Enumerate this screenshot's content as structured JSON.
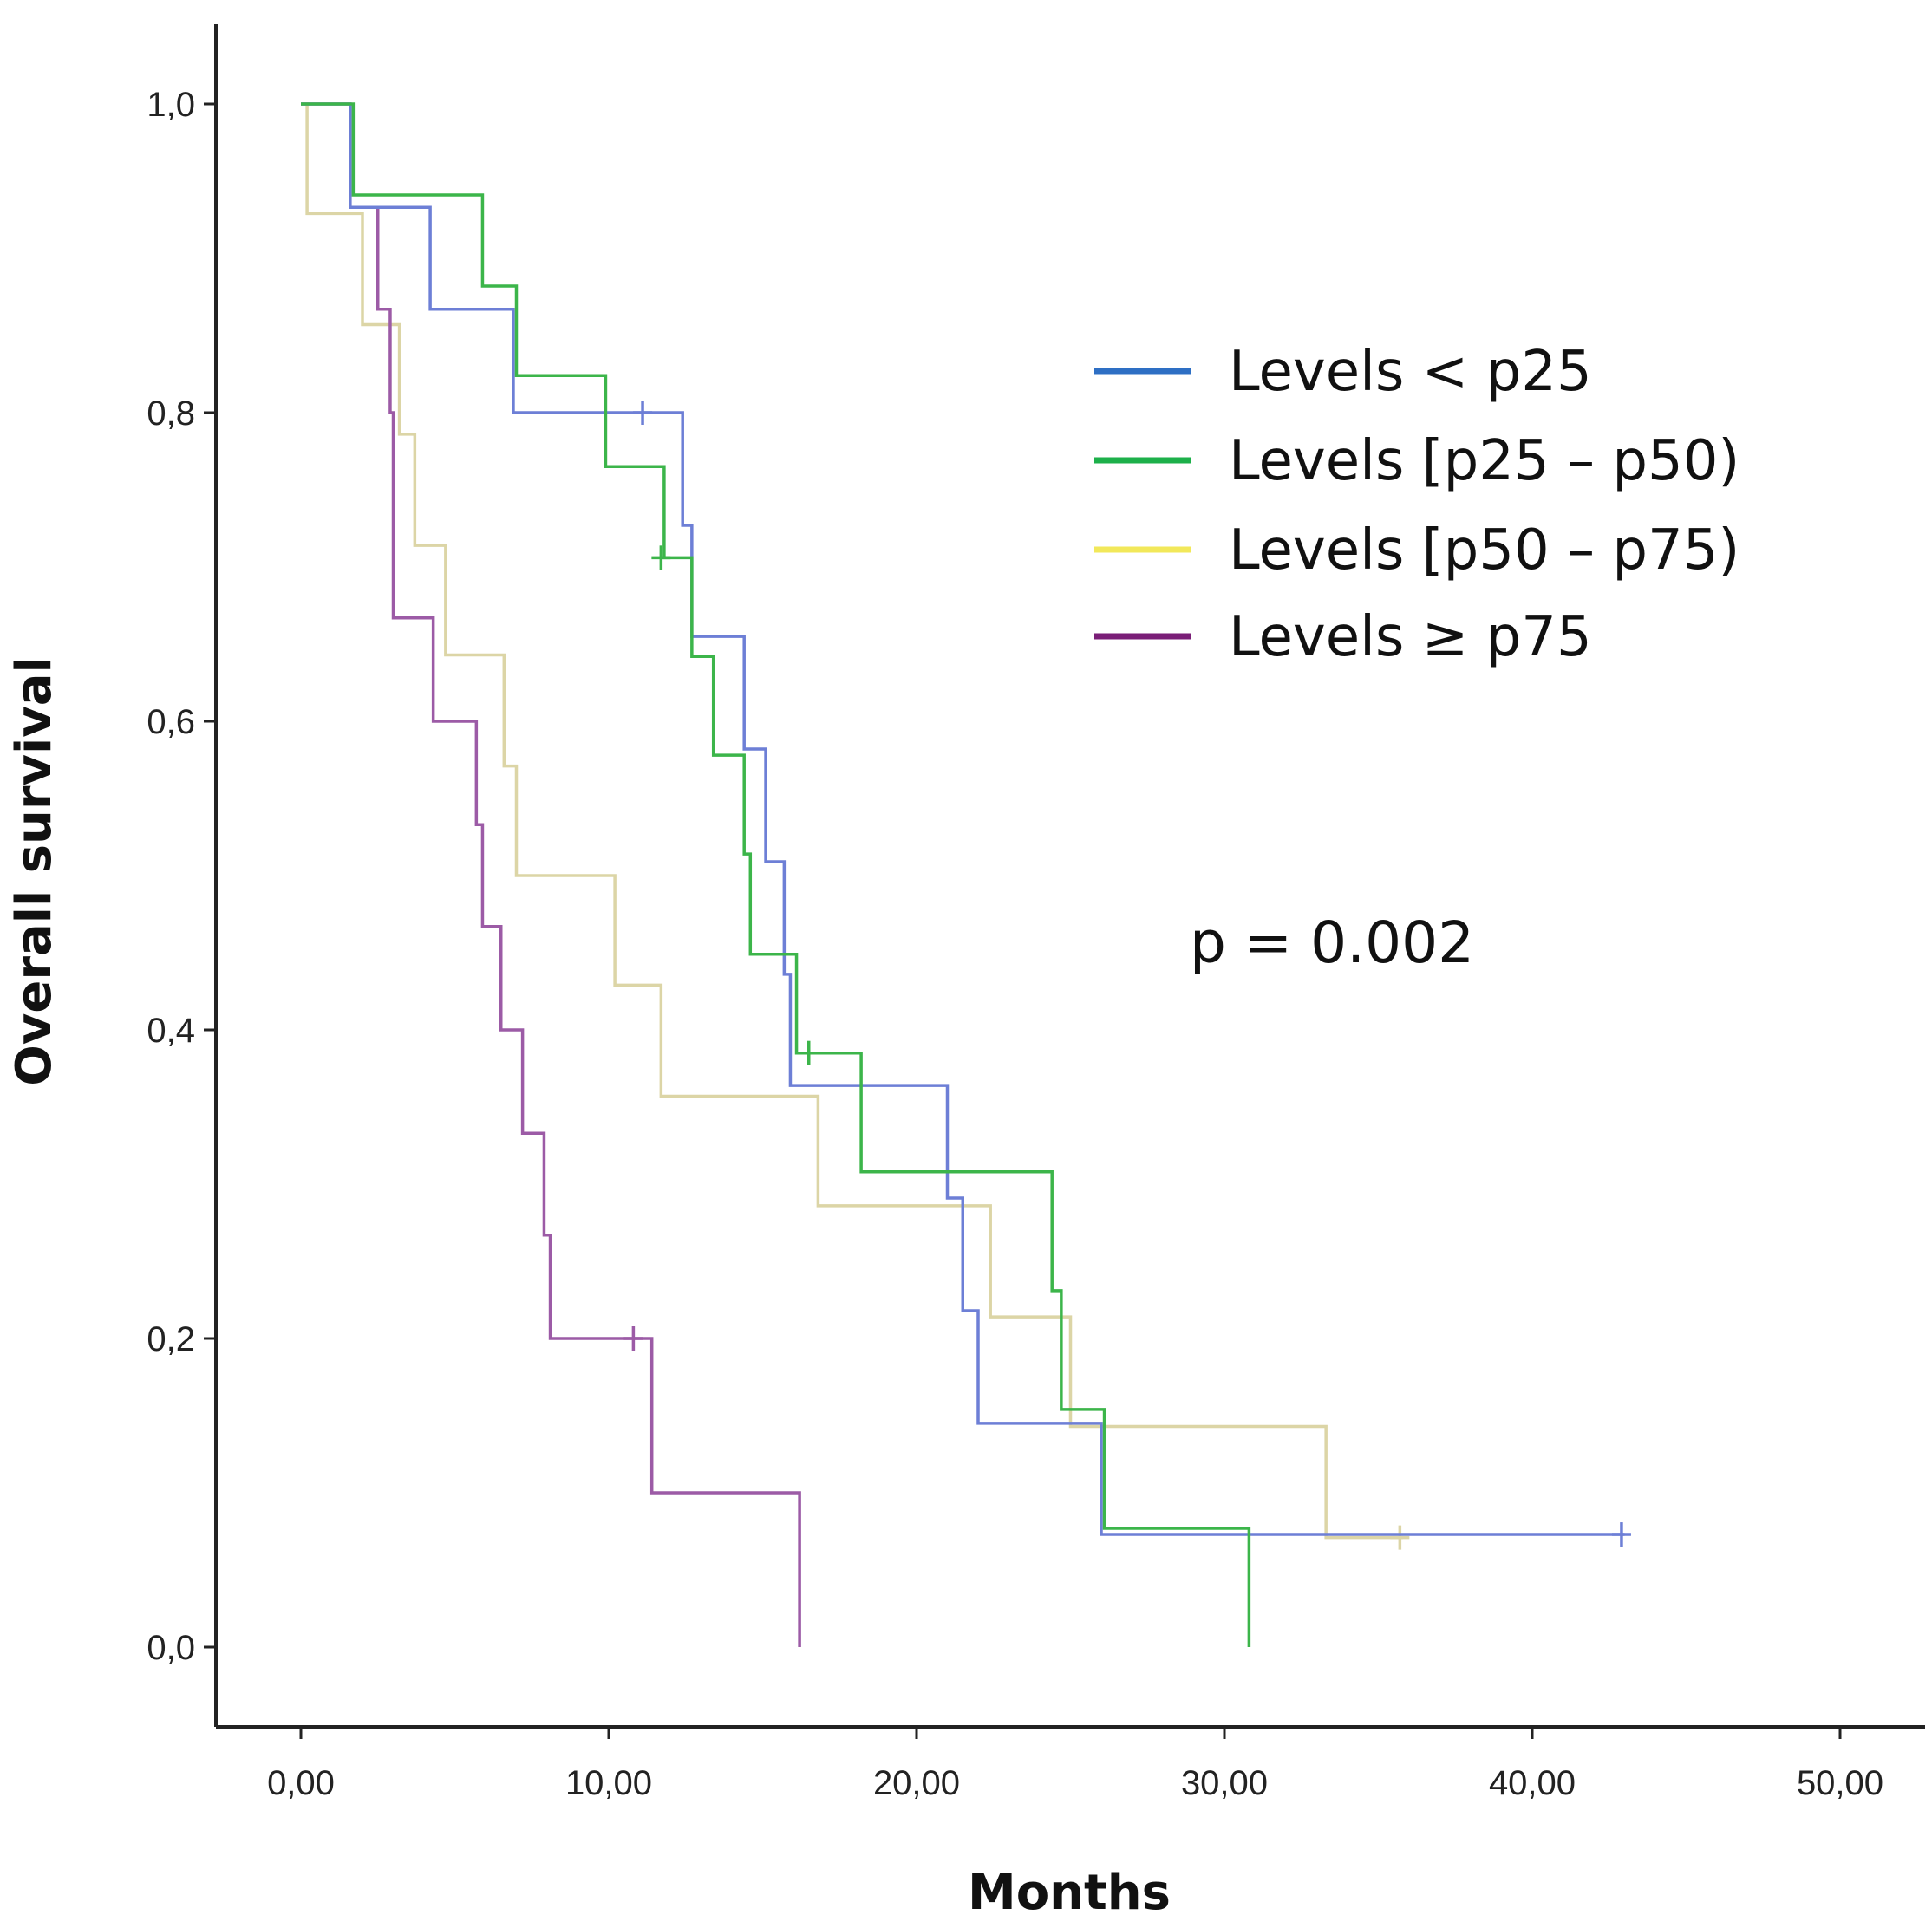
{
  "chart_data": {
    "type": "line",
    "step": true,
    "xlabel": "Months",
    "ylabel": "Overall survival",
    "xlim": [
      -2.8,
      52
    ],
    "ylim": [
      -0.058,
      1.055
    ],
    "xticks": [
      0,
      10,
      20,
      30,
      40,
      50
    ],
    "xtick_labels": [
      "0,00",
      "10,00",
      "20,00",
      "30,00",
      "40,00",
      "50,00"
    ],
    "yticks": [
      0,
      0.2,
      0.4,
      0.6,
      0.8,
      1.0
    ],
    "ytick_labels": [
      "0,0",
      "0,2",
      "0,4",
      "0,6",
      "0,8",
      "1,0"
    ],
    "legend_position": "top-right",
    "annotation": "p = 0.002",
    "series": [
      {
        "name": "Levels < p25",
        "color": "#2E6FC4",
        "plot_color": "#6D7FD6",
        "x": [
          0,
          1.6,
          4.2,
          6.9,
          12.1,
          12.4,
          12.7,
          14.4,
          15.1,
          15.7,
          15.9,
          21.0,
          21.5,
          22.0,
          26.0,
          43.0
        ],
        "y": [
          1.0,
          0.933,
          0.867,
          0.8,
          0.8,
          0.727,
          0.655,
          0.582,
          0.509,
          0.436,
          0.364,
          0.291,
          0.218,
          0.145,
          0.073,
          0.073
        ],
        "censored": [
          {
            "x": 11.1,
            "y": 0.8
          },
          {
            "x": 42.9,
            "y": 0.073
          }
        ]
      },
      {
        "name": "Levels [p25 – p50)",
        "color": "#1DB04A",
        "plot_color": "#3CB54A",
        "x": [
          0,
          1.7,
          5.9,
          7.0,
          9.9,
          11.8,
          12.7,
          13.4,
          14.4,
          14.6,
          16.1,
          18.2,
          24.4,
          24.7,
          26.1,
          30.8,
          30.8
        ],
        "y": [
          1.0,
          0.941,
          0.882,
          0.824,
          0.765,
          0.706,
          0.642,
          0.578,
          0.514,
          0.449,
          0.385,
          0.308,
          0.231,
          0.154,
          0.077,
          0.077,
          0.0
        ],
        "censored": [
          {
            "x": 11.7,
            "y": 0.706
          },
          {
            "x": 16.5,
            "y": 0.385
          }
        ]
      },
      {
        "name": "Levels [p50 – p75)",
        "color": "#F2E85A",
        "plot_color": "#DCD5A6",
        "x": [
          0,
          0.2,
          2.0,
          3.2,
          3.7,
          4.7,
          6.6,
          7.0,
          10.2,
          11.7,
          16.8,
          22.4,
          25.0,
          33.3,
          35.8
        ],
        "y": [
          1.0,
          0.929,
          0.857,
          0.786,
          0.714,
          0.643,
          0.571,
          0.5,
          0.429,
          0.357,
          0.286,
          0.214,
          0.143,
          0.071,
          0.071
        ],
        "censored": [
          {
            "x": 35.7,
            "y": 0.071
          }
        ]
      },
      {
        "name": "Levels ≥ p75",
        "color": "#7A1E77",
        "plot_color": "#9C5BA6",
        "x": [
          0,
          1.6,
          2.5,
          2.9,
          3.0,
          4.3,
          5.7,
          5.8,
          5.9,
          6.5,
          7.2,
          7.9,
          8.1,
          11.4,
          16.2,
          16.2
        ],
        "y": [
          1.0,
          0.933,
          0.867,
          0.8,
          0.667,
          0.6,
          0.533,
          0.533,
          0.467,
          0.4,
          0.333,
          0.267,
          0.2,
          0.1,
          0.1,
          0.0
        ],
        "censored": [
          {
            "x": 10.8,
            "y": 0.2
          }
        ]
      }
    ]
  }
}
